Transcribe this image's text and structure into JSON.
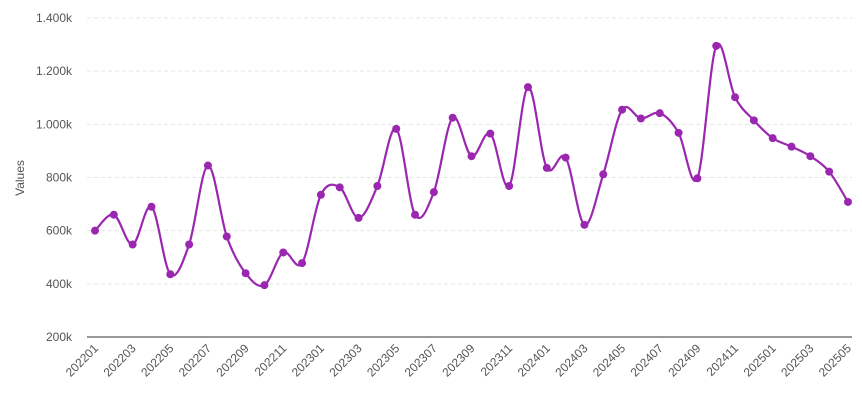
{
  "chart_data": {
    "type": "line",
    "title": "",
    "xlabel": "",
    "ylabel": "Values",
    "ylim": [
      200,
      1400
    ],
    "y_ticks": [
      "200k",
      "400k",
      "600k",
      "800k",
      "1.000k",
      "1.200k",
      "1.400k"
    ],
    "y_tick_values": [
      200,
      400,
      600,
      800,
      1000,
      1200,
      1400
    ],
    "x_tick_labels": [
      "202201",
      "202203",
      "202205",
      "202207",
      "202209",
      "202211",
      "202301",
      "202303",
      "202305",
      "202307",
      "202309",
      "202311",
      "202401",
      "202403",
      "202405",
      "202407",
      "202409",
      "202411",
      "202501",
      "202503",
      "202505"
    ],
    "categories": [
      "202201",
      "202202",
      "202203",
      "202204",
      "202205",
      "202206",
      "202207",
      "202208",
      "202209",
      "202210",
      "202211",
      "202212",
      "202301",
      "202302",
      "202303",
      "202304",
      "202305",
      "202306",
      "202307",
      "202308",
      "202309",
      "202310",
      "202311",
      "202312",
      "202401",
      "202402",
      "202403",
      "202404",
      "202405",
      "202406",
      "202407",
      "202408",
      "202409",
      "202410",
      "202411",
      "202412",
      "202501",
      "202502",
      "202503",
      "202504",
      "202505"
    ],
    "series": [
      {
        "name": "Values",
        "color": "#9b27b0",
        "values": [
          600,
          660,
          548,
          690,
          436,
          548,
          845,
          578,
          440,
          395,
          518,
          478,
          735,
          763,
          648,
          768,
          983,
          660,
          745,
          1025,
          880,
          965,
          768,
          1140,
          836,
          875,
          622,
          812,
          1055,
          1022,
          1042,
          968,
          797,
          1295,
          1102,
          1015,
          948,
          916,
          880,
          822,
          708
        ]
      }
    ],
    "grid": true
  }
}
